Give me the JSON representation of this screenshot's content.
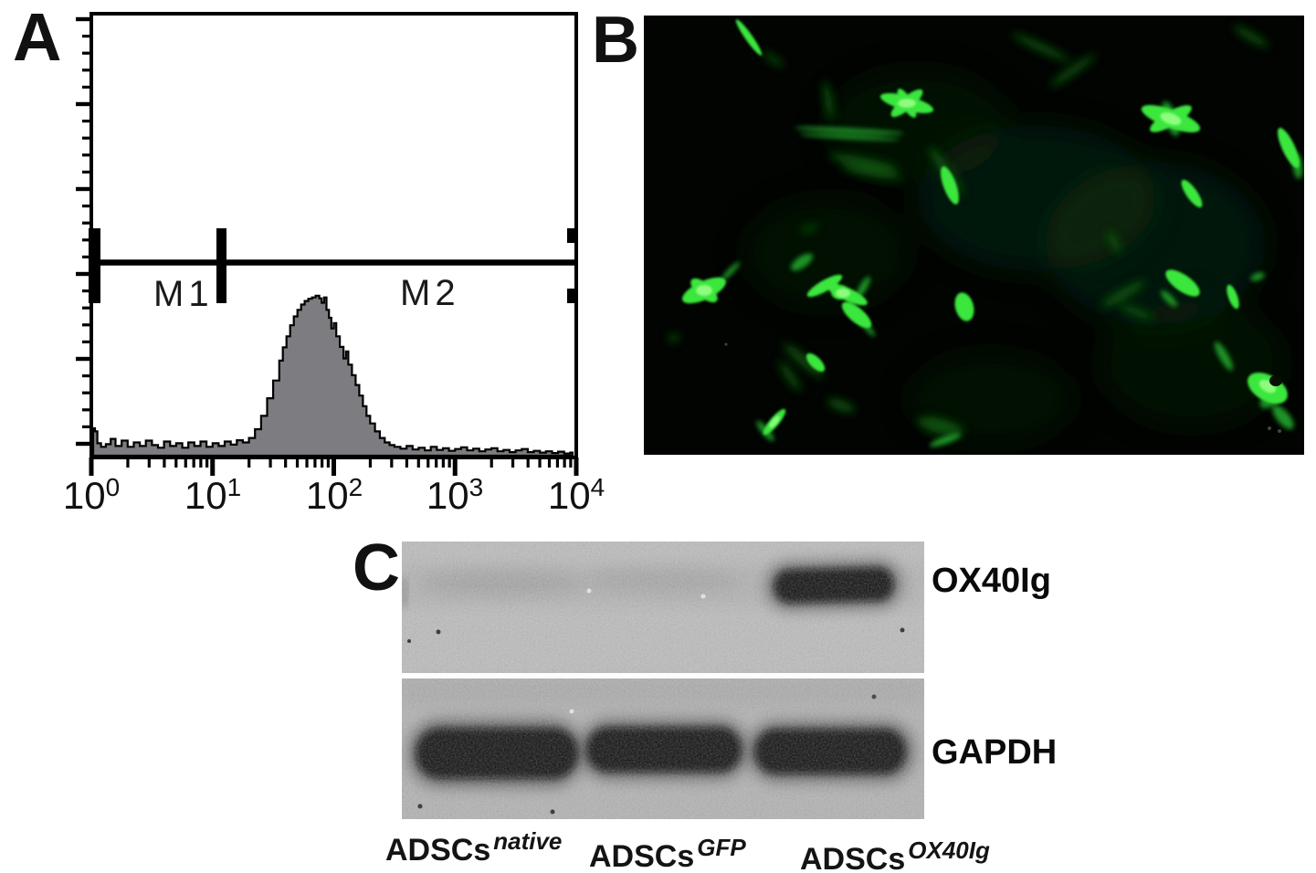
{
  "page": {
    "background": "#ffffff",
    "description": "Three-panel research figure: flow cytometry histogram (A), GFP fluorescence micrograph (B), gel blot (C)"
  },
  "panelA": {
    "label": "A",
    "marker1": "M1",
    "marker2": "M2",
    "x_ticks": [
      {
        "base": "10",
        "exp": "0"
      },
      {
        "base": "10",
        "exp": "1"
      },
      {
        "base": "10",
        "exp": "2"
      },
      {
        "base": "10",
        "exp": "3"
      },
      {
        "base": "10",
        "exp": "4"
      }
    ]
  },
  "panelB": {
    "label": "B",
    "content": "fluorescence micrograph of GFP-positive spindle-shaped ADSCs on black background",
    "gfp_green": "#3ae63c"
  },
  "panelC": {
    "label": "C",
    "blot_labels": {
      "top": "OX40Ig",
      "bottom": "GAPDH"
    },
    "lanes": [
      {
        "base": "ADSCs",
        "sup": "native"
      },
      {
        "base": "ADSCs",
        "sup": "GFP"
      },
      {
        "base": "ADSCs",
        "sup": "OX40Ig"
      }
    ],
    "bands": {
      "OX40Ig_present_in": [
        "ADSCs OX40Ig"
      ],
      "GAPDH_present_in": [
        "ADSCs native",
        "ADSCs GFP",
        "ADSCs OX40Ig"
      ]
    },
    "gel_gray_top": "#bcbcbc",
    "gel_gray_bottom": "#b2b2b2"
  },
  "chart_data": {
    "type": "area",
    "subtype": "flow-cytometry-histogram",
    "title": "",
    "xlabel": "",
    "ylabel": "",
    "x_scale": "log10",
    "x_range": [
      1,
      10000
    ],
    "x_tick_labels": [
      "10^0",
      "10^1",
      "10^2",
      "10^3",
      "10^4"
    ],
    "y_axis_note": "event count axis, unlabeled ticks",
    "fill_color": "#7c7c81",
    "outline_color": "#000000",
    "peak_x_approx": 76,
    "markers": {
      "M1": {
        "from_log10": 0.0,
        "to_log10": 1.05
      },
      "M2": {
        "from_log10": 1.05,
        "to_log10": 4.0
      },
      "gate_line_height_frac": 0.44
    },
    "bins_log10_x_and_height_frac": [
      [
        0.015,
        0.062
      ],
      [
        0.03,
        0.055
      ],
      [
        0.05,
        0.028
      ],
      [
        0.08,
        0.02
      ],
      [
        0.12,
        0.026
      ],
      [
        0.16,
        0.038
      ],
      [
        0.2,
        0.022
      ],
      [
        0.25,
        0.034
      ],
      [
        0.3,
        0.02
      ],
      [
        0.35,
        0.03
      ],
      [
        0.4,
        0.022
      ],
      [
        0.45,
        0.034
      ],
      [
        0.5,
        0.024
      ],
      [
        0.55,
        0.018
      ],
      [
        0.6,
        0.032
      ],
      [
        0.65,
        0.022
      ],
      [
        0.7,
        0.028
      ],
      [
        0.75,
        0.018
      ],
      [
        0.8,
        0.03
      ],
      [
        0.85,
        0.022
      ],
      [
        0.9,
        0.032
      ],
      [
        0.95,
        0.02
      ],
      [
        1.0,
        0.028
      ],
      [
        1.05,
        0.022
      ],
      [
        1.1,
        0.032
      ],
      [
        1.15,
        0.025
      ],
      [
        1.2,
        0.035
      ],
      [
        1.25,
        0.03
      ],
      [
        1.3,
        0.04
      ],
      [
        1.35,
        0.06
      ],
      [
        1.4,
        0.09
      ],
      [
        1.45,
        0.13
      ],
      [
        1.5,
        0.17
      ],
      [
        1.55,
        0.215
      ],
      [
        1.58,
        0.245
      ],
      [
        1.61,
        0.27
      ],
      [
        1.64,
        0.295
      ],
      [
        1.67,
        0.315
      ],
      [
        1.7,
        0.33
      ],
      [
        1.73,
        0.342
      ],
      [
        1.76,
        0.35
      ],
      [
        1.79,
        0.355
      ],
      [
        1.82,
        0.358
      ],
      [
        1.85,
        0.362
      ],
      [
        1.88,
        0.356
      ],
      [
        1.9,
        0.346
      ],
      [
        1.92,
        0.358
      ],
      [
        1.94,
        0.33
      ],
      [
        1.96,
        0.312
      ],
      [
        1.98,
        0.288
      ],
      [
        2.0,
        0.3
      ],
      [
        2.02,
        0.27
      ],
      [
        2.05,
        0.246
      ],
      [
        2.08,
        0.22
      ],
      [
        2.1,
        0.236
      ],
      [
        2.12,
        0.206
      ],
      [
        2.15,
        0.182
      ],
      [
        2.18,
        0.16
      ],
      [
        2.21,
        0.136
      ],
      [
        2.24,
        0.112
      ],
      [
        2.27,
        0.09
      ],
      [
        2.3,
        0.073
      ],
      [
        2.34,
        0.055
      ],
      [
        2.38,
        0.04
      ],
      [
        2.42,
        0.03
      ],
      [
        2.46,
        0.024
      ],
      [
        2.5,
        0.02
      ],
      [
        2.55,
        0.016
      ],
      [
        2.6,
        0.022
      ],
      [
        2.65,
        0.014
      ],
      [
        2.7,
        0.018
      ],
      [
        2.75,
        0.012
      ],
      [
        2.8,
        0.02
      ],
      [
        2.85,
        0.013
      ],
      [
        2.9,
        0.017
      ],
      [
        2.95,
        0.011
      ],
      [
        3.0,
        0.015
      ],
      [
        3.05,
        0.019
      ],
      [
        3.1,
        0.012
      ],
      [
        3.15,
        0.016
      ],
      [
        3.2,
        0.01
      ],
      [
        3.25,
        0.014
      ],
      [
        3.3,
        0.017
      ],
      [
        3.35,
        0.01
      ],
      [
        3.4,
        0.013
      ],
      [
        3.45,
        0.008
      ],
      [
        3.5,
        0.012
      ],
      [
        3.55,
        0.015
      ],
      [
        3.6,
        0.008
      ],
      [
        3.65,
        0.011
      ],
      [
        3.7,
        0.007
      ],
      [
        3.75,
        0.01
      ],
      [
        3.8,
        0.006
      ],
      [
        3.85,
        0.009
      ],
      [
        3.9,
        0.005
      ],
      [
        3.95,
        0.007
      ]
    ]
  }
}
